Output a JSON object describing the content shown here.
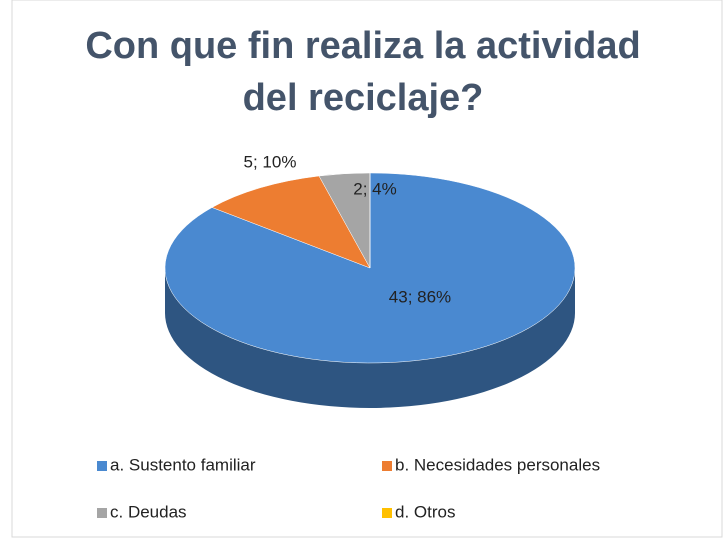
{
  "chart_data": {
    "type": "pie",
    "title": "Con que fin realiza la actividad del reciclaje?",
    "categories": [
      "a. Sustento familiar",
      "b. Necesidades personales",
      "c. Deudas",
      "d. Otros"
    ],
    "values": [
      43,
      5,
      2,
      0
    ],
    "value_labels": [
      "43; 86%",
      "5; 10%",
      "2; 4%",
      null
    ],
    "colors": [
      "#4a89d0",
      "#ed7d31",
      "#a5a5a5",
      "#ffc000"
    ],
    "legend": "bottom"
  }
}
